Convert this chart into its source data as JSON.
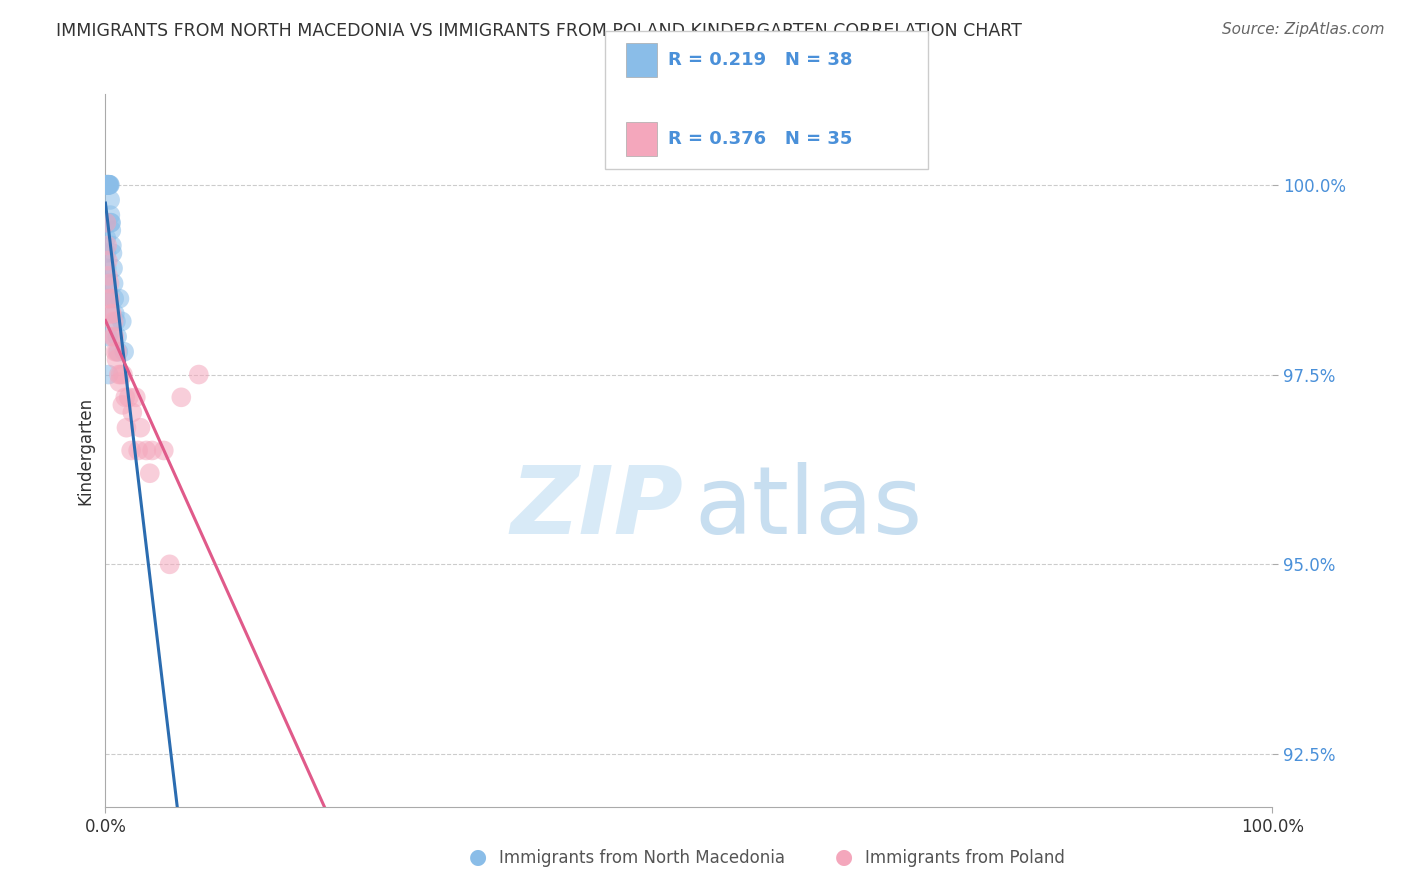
{
  "title": "IMMIGRANTS FROM NORTH MACEDONIA VS IMMIGRANTS FROM POLAND KINDERGARTEN CORRELATION CHART",
  "source": "Source: ZipAtlas.com",
  "ylabel": "Kindergarten",
  "xlim": [
    0.0,
    100.0
  ],
  "ylim": [
    91.8,
    101.2
  ],
  "yticks": [
    92.5,
    95.0,
    97.5,
    100.0
  ],
  "ytick_labels": [
    "92.5%",
    "95.0%",
    "97.5%",
    "100.0%"
  ],
  "xticks": [
    0.0,
    100.0
  ],
  "xtick_labels": [
    "0.0%",
    "100.0%"
  ],
  "color_blue": "#8abde8",
  "color_pink": "#f4a7bc",
  "color_blue_line": "#2b6cb0",
  "color_pink_line": "#e05a8a",
  "color_tick_right": "#4a90d9",
  "color_dark": "#333333",
  "background_color": "#ffffff",
  "grid_color": "#cccccc",
  "nm_x": [
    0.05,
    0.08,
    0.1,
    0.12,
    0.15,
    0.18,
    0.2,
    0.22,
    0.25,
    0.28,
    0.3,
    0.35,
    0.38,
    0.4,
    0.42,
    0.45,
    0.48,
    0.5,
    0.55,
    0.6,
    0.65,
    0.7,
    0.75,
    0.8,
    0.9,
    1.0,
    1.1,
    1.2,
    1.4,
    1.6,
    0.05,
    0.07,
    0.09,
    0.11,
    0.14,
    0.17,
    0.22,
    0.27
  ],
  "nm_y": [
    100.0,
    100.0,
    100.0,
    100.0,
    100.0,
    100.0,
    100.0,
    100.0,
    100.0,
    100.0,
    100.0,
    100.0,
    100.0,
    99.8,
    99.6,
    99.5,
    99.5,
    99.4,
    99.2,
    99.1,
    98.9,
    98.7,
    98.5,
    98.3,
    98.2,
    98.0,
    97.8,
    98.5,
    98.2,
    97.8,
    99.5,
    99.3,
    99.1,
    98.9,
    98.7,
    98.5,
    98.0,
    97.5
  ],
  "pl_x": [
    0.08,
    0.15,
    0.22,
    0.3,
    0.4,
    0.5,
    0.6,
    0.7,
    0.85,
    1.0,
    1.15,
    1.3,
    1.5,
    1.7,
    2.0,
    2.3,
    2.6,
    3.0,
    3.5,
    4.0,
    5.0,
    6.5,
    8.0,
    0.2,
    0.35,
    0.55,
    0.75,
    0.95,
    1.2,
    1.45,
    1.8,
    2.2,
    2.8,
    3.8,
    5.5
  ],
  "pl_y": [
    99.5,
    99.2,
    98.8,
    98.5,
    98.5,
    98.3,
    98.0,
    98.2,
    97.8,
    97.8,
    97.5,
    97.5,
    97.5,
    97.2,
    97.2,
    97.0,
    97.2,
    96.8,
    96.5,
    96.5,
    96.5,
    97.2,
    97.5,
    99.0,
    98.7,
    98.3,
    98.0,
    97.7,
    97.4,
    97.1,
    96.8,
    96.5,
    96.5,
    96.2,
    95.0
  ]
}
